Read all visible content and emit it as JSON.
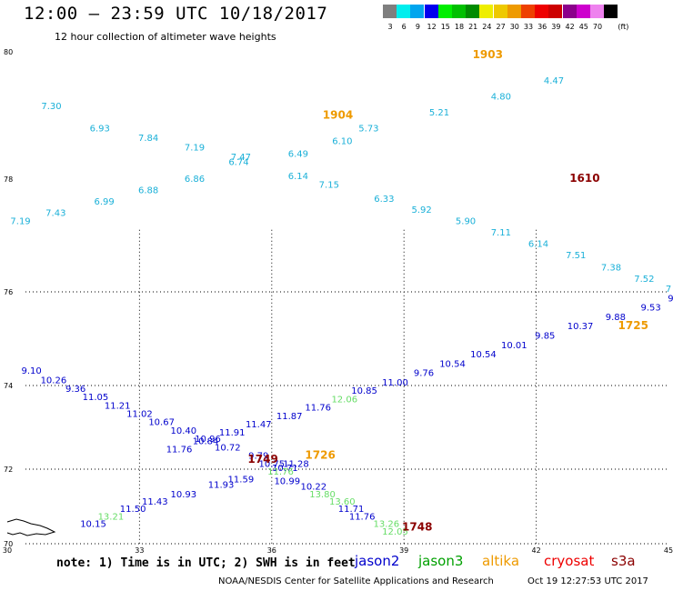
{
  "header": {
    "title": "12:00 – 23:59 UTC 10/18/2017",
    "subtitle": "12 hour collection of altimeter wave heights"
  },
  "legend": {
    "unit": "(ft)",
    "scale": [
      {
        "label": "3",
        "color": "#7f7f7f"
      },
      {
        "label": "6",
        "color": "#00eeee"
      },
      {
        "label": "9",
        "color": "#00a5ee"
      },
      {
        "label": "12",
        "color": "#0000ee"
      },
      {
        "label": "15",
        "color": "#00ee00"
      },
      {
        "label": "18",
        "color": "#00c000"
      },
      {
        "label": "21",
        "color": "#008b00"
      },
      {
        "label": "24",
        "color": "#eeee00"
      },
      {
        "label": "27",
        "color": "#eec900"
      },
      {
        "label": "30",
        "color": "#ee9a00"
      },
      {
        "label": "33",
        "color": "#ee4000"
      },
      {
        "label": "36",
        "color": "#ee0000"
      },
      {
        "label": "39",
        "color": "#cd0000"
      },
      {
        "label": "42",
        "color": "#8b008b"
      },
      {
        "label": "45",
        "color": "#cd00cd"
      },
      {
        "label": "70",
        "color": "#ee82ee"
      },
      {
        "label": "",
        "color": "#000000"
      }
    ]
  },
  "map": {
    "lon_ticks": [
      {
        "label": "30",
        "value": 30
      },
      {
        "label": "33",
        "value": 33
      },
      {
        "label": "36",
        "value": 36
      },
      {
        "label": "39",
        "value": 39
      },
      {
        "label": "42",
        "value": 42
      },
      {
        "label": "45",
        "value": 45
      }
    ],
    "lat_ticks": [
      {
        "label": "80",
        "value": 80
      },
      {
        "label": "78",
        "value": 78
      },
      {
        "label": "76",
        "value": 76
      },
      {
        "label": "74",
        "value": 74
      },
      {
        "label": "72",
        "value": 72
      },
      {
        "label": "70",
        "value": 70
      }
    ],
    "lon_range": [
      30,
      45
    ],
    "lat_range": [
      70,
      80
    ],
    "grid": "dotted",
    "colors": {
      "jason2": "#0000cc",
      "jason3": "#22aa22",
      "altika": "#ee9a00",
      "cryosat": "#ee0000",
      "s3a": "#8b0000",
      "light_green": "#66dd66",
      "cyan": "#1ab0d8"
    },
    "track_labels": [
      {
        "text": "1903",
        "lon": 40.9,
        "lat": 79.9,
        "color": "#ee9a00",
        "bold": true
      },
      {
        "text": "1904",
        "lon": 37.5,
        "lat": 78.95,
        "color": "#ee9a00",
        "bold": true
      },
      {
        "text": "1610",
        "lon": 43.1,
        "lat": 77.95,
        "color": "#8b0000",
        "bold": true
      },
      {
        "text": "1725",
        "lon": 44.2,
        "lat": 75.2,
        "color": "#ee9a00",
        "bold": true
      },
      {
        "text": "1726",
        "lon": 37.1,
        "lat": 72.25,
        "color": "#ee9a00",
        "bold": true
      },
      {
        "text": "1749",
        "lon": 35.8,
        "lat": 72.15,
        "color": "#8b0000",
        "bold": true
      },
      {
        "text": "1748",
        "lon": 39.3,
        "lat": 70.35,
        "color": "#8b0000",
        "bold": true
      }
    ],
    "swh_values": [
      {
        "text": "7.30",
        "lon": 31.0,
        "lat": 79.1,
        "color": "#1ab0d8"
      },
      {
        "text": "6.93",
        "lon": 32.1,
        "lat": 78.75,
        "color": "#1ab0d8"
      },
      {
        "text": "7.84",
        "lon": 33.2,
        "lat": 78.6,
        "color": "#1ab0d8"
      },
      {
        "text": "7.19",
        "lon": 34.25,
        "lat": 78.45,
        "color": "#1ab0d8"
      },
      {
        "text": "7.47",
        "lon": 35.3,
        "lat": 78.3,
        "color": "#1ab0d8"
      },
      {
        "text": "6.74",
        "lon": 35.25,
        "lat": 78.22,
        "color": "#1ab0d8"
      },
      {
        "text": "6.49",
        "lon": 36.6,
        "lat": 78.35,
        "color": "#1ab0d8"
      },
      {
        "text": "6.10",
        "lon": 37.6,
        "lat": 78.55,
        "color": "#1ab0d8"
      },
      {
        "text": "5.73",
        "lon": 38.2,
        "lat": 78.75,
        "color": "#1ab0d8"
      },
      {
        "text": "5.21",
        "lon": 39.8,
        "lat": 79.0,
        "color": "#1ab0d8"
      },
      {
        "text": "4.80",
        "lon": 41.2,
        "lat": 79.25,
        "color": "#1ab0d8"
      },
      {
        "text": "4.47",
        "lon": 42.4,
        "lat": 79.5,
        "color": "#1ab0d8"
      },
      {
        "text": "6.86",
        "lon": 34.25,
        "lat": 77.95,
        "color": "#1ab0d8"
      },
      {
        "text": "6.14",
        "lon": 36.6,
        "lat": 78.0,
        "color": "#1ab0d8"
      },
      {
        "text": "6.88",
        "lon": 33.2,
        "lat": 77.75,
        "color": "#1ab0d8"
      },
      {
        "text": "7.15",
        "lon": 37.3,
        "lat": 77.85,
        "color": "#1ab0d8"
      },
      {
        "text": "6.99",
        "lon": 32.2,
        "lat": 77.55,
        "color": "#1ab0d8"
      },
      {
        "text": "6.33",
        "lon": 38.55,
        "lat": 77.6,
        "color": "#1ab0d8"
      },
      {
        "text": "7.43",
        "lon": 31.1,
        "lat": 77.35,
        "color": "#1ab0d8"
      },
      {
        "text": "5.92",
        "lon": 39.4,
        "lat": 77.4,
        "color": "#1ab0d8"
      },
      {
        "text": "7.19",
        "lon": 30.3,
        "lat": 77.2,
        "color": "#1ab0d8"
      },
      {
        "text": "5.90",
        "lon": 40.4,
        "lat": 77.2,
        "color": "#1ab0d8"
      },
      {
        "text": "7.11",
        "lon": 41.2,
        "lat": 77.0,
        "color": "#1ab0d8"
      },
      {
        "text": "6.14",
        "lon": 42.05,
        "lat": 76.8,
        "color": "#1ab0d8"
      },
      {
        "text": "7.51",
        "lon": 42.9,
        "lat": 76.6,
        "color": "#1ab0d8"
      },
      {
        "text": "7.38",
        "lon": 43.7,
        "lat": 76.38,
        "color": "#1ab0d8"
      },
      {
        "text": "7.52",
        "lon": 44.45,
        "lat": 76.18,
        "color": "#1ab0d8"
      },
      {
        "text": "7",
        "lon": 45.0,
        "lat": 76.0,
        "color": "#1ab0d8"
      },
      {
        "text": "9",
        "lon": 45.05,
        "lat": 75.8,
        "color": "#0000cc"
      },
      {
        "text": "9.53",
        "lon": 44.6,
        "lat": 75.6,
        "color": "#0000cc"
      },
      {
        "text": "9.88",
        "lon": 43.8,
        "lat": 75.4,
        "color": "#0000cc"
      },
      {
        "text": "10.37",
        "lon": 43.0,
        "lat": 75.2,
        "color": "#0000cc"
      },
      {
        "text": "9.85",
        "lon": 42.2,
        "lat": 75.0,
        "color": "#0000cc"
      },
      {
        "text": "10.01",
        "lon": 41.5,
        "lat": 74.8,
        "color": "#0000cc"
      },
      {
        "text": "10.54",
        "lon": 40.8,
        "lat": 74.6,
        "color": "#0000cc"
      },
      {
        "text": "10.54",
        "lon": 40.1,
        "lat": 74.4,
        "color": "#0000cc"
      },
      {
        "text": "9.76",
        "lon": 39.45,
        "lat": 74.2,
        "color": "#0000cc"
      },
      {
        "text": "11.00",
        "lon": 38.8,
        "lat": 74.0,
        "color": "#0000cc"
      },
      {
        "text": "10.85",
        "lon": 38.1,
        "lat": 73.8,
        "color": "#0000cc"
      },
      {
        "text": "12.06",
        "lon": 37.65,
        "lat": 73.6,
        "color": "#66dd66"
      },
      {
        "text": "11.76",
        "lon": 37.05,
        "lat": 73.4,
        "color": "#0000cc"
      },
      {
        "text": "11.87",
        "lon": 36.4,
        "lat": 73.2,
        "color": "#0000cc"
      },
      {
        "text": "11.47",
        "lon": 35.7,
        "lat": 73.0,
        "color": "#0000cc"
      },
      {
        "text": "11.91",
        "lon": 35.1,
        "lat": 72.8,
        "color": "#0000cc"
      },
      {
        "text": "10.84",
        "lon": 34.5,
        "lat": 72.6,
        "color": "#0000cc"
      },
      {
        "text": "11.76",
        "lon": 33.9,
        "lat": 72.4,
        "color": "#0000cc"
      },
      {
        "text": "9.10",
        "lon": 30.55,
        "lat": 74.25,
        "color": "#0000cc"
      },
      {
        "text": "10.26",
        "lon": 31.05,
        "lat": 74.05,
        "color": "#0000cc"
      },
      {
        "text": "9.36",
        "lon": 31.55,
        "lat": 73.85,
        "color": "#0000cc"
      },
      {
        "text": "11.05",
        "lon": 32.0,
        "lat": 73.65,
        "color": "#0000cc"
      },
      {
        "text": "11.21",
        "lon": 32.5,
        "lat": 73.45,
        "color": "#0000cc"
      },
      {
        "text": "11.02",
        "lon": 33.0,
        "lat": 73.25,
        "color": "#0000cc"
      },
      {
        "text": "10.67",
        "lon": 33.5,
        "lat": 73.05,
        "color": "#0000cc"
      },
      {
        "text": "10.40",
        "lon": 34.0,
        "lat": 72.85,
        "color": "#0000cc"
      },
      {
        "text": "10.96",
        "lon": 34.55,
        "lat": 72.65,
        "color": "#0000cc"
      },
      {
        "text": "10.72",
        "lon": 35.0,
        "lat": 72.45,
        "color": "#0000cc"
      },
      {
        "text": "9.79",
        "lon": 35.7,
        "lat": 72.25,
        "color": "#0000cc"
      },
      {
        "text": "10.75",
        "lon": 36.0,
        "lat": 72.05,
        "color": "#0000cc"
      },
      {
        "text": "10.71",
        "lon": 36.3,
        "lat": 71.95,
        "color": "#0000cc"
      },
      {
        "text": "11.28",
        "lon": 36.55,
        "lat": 72.05,
        "color": "#0000cc"
      },
      {
        "text": "11.76",
        "lon": 36.2,
        "lat": 71.85,
        "color": "#66dd66"
      },
      {
        "text": "11.59",
        "lon": 35.3,
        "lat": 71.65,
        "color": "#0000cc"
      },
      {
        "text": "10.99",
        "lon": 36.35,
        "lat": 71.6,
        "color": "#0000cc"
      },
      {
        "text": "10.22",
        "lon": 36.95,
        "lat": 71.45,
        "color": "#0000cc"
      },
      {
        "text": "11.93",
        "lon": 34.85,
        "lat": 71.5,
        "color": "#0000cc"
      },
      {
        "text": "10.93",
        "lon": 34.0,
        "lat": 71.25,
        "color": "#0000cc"
      },
      {
        "text": "13.80",
        "lon": 37.15,
        "lat": 71.25,
        "color": "#66dd66"
      },
      {
        "text": "11.43",
        "lon": 33.35,
        "lat": 71.05,
        "color": "#0000cc"
      },
      {
        "text": "13.60",
        "lon": 37.6,
        "lat": 71.05,
        "color": "#66dd66"
      },
      {
        "text": "11.50",
        "lon": 32.85,
        "lat": 70.85,
        "color": "#0000cc"
      },
      {
        "text": "11.71",
        "lon": 37.8,
        "lat": 70.85,
        "color": "#0000cc"
      },
      {
        "text": "13.21",
        "lon": 32.35,
        "lat": 70.65,
        "color": "#66dd66"
      },
      {
        "text": "11.76",
        "lon": 38.05,
        "lat": 70.65,
        "color": "#0000cc"
      },
      {
        "text": "10.15",
        "lon": 31.95,
        "lat": 70.45,
        "color": "#0000cc"
      },
      {
        "text": "13.26",
        "lon": 38.6,
        "lat": 70.45,
        "color": "#66dd66"
      },
      {
        "text": "12.05",
        "lon": 38.8,
        "lat": 70.25,
        "color": "#66dd66"
      }
    ]
  },
  "footer": {
    "note": "note:  1) Time is in UTC;  2) SWH is in feet",
    "satellites": [
      {
        "name": "jason2",
        "color": "#0000cc"
      },
      {
        "name": "jason3",
        "color": "#00a000"
      },
      {
        "name": "altika",
        "color": "#ee9a00"
      },
      {
        "name": "cryosat",
        "color": "#ee0000"
      },
      {
        "name": "s3a",
        "color": "#8b0000"
      }
    ],
    "credit": "NOAA/NESDIS Center for Satellite Applications and Research",
    "timestamp": "Oct 19 12:27:53 UTC 2017"
  }
}
